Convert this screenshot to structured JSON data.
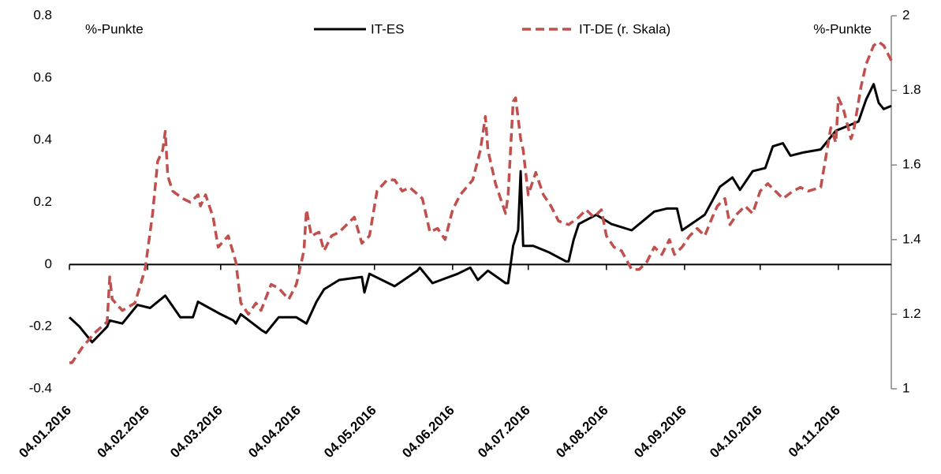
{
  "chart_data": {
    "type": "line",
    "annotations": [
      "%-Punkte",
      "%-Punkte"
    ],
    "xlim": [
      "04.01.2016",
      "25.11.2016"
    ],
    "xticks": [
      "04.01.2016",
      "04.02.2016",
      "04.03.2016",
      "04.04.2016",
      "04.05.2016",
      "04.06.2016",
      "04.07.2016",
      "04.08.2016",
      "04.09.2016",
      "04.10.2016",
      "04.11.2016"
    ],
    "ylim": [
      -0.4,
      0.8
    ],
    "yticks": [
      -0.4,
      -0.2,
      0,
      0.2,
      0.4,
      0.6,
      0.8
    ],
    "y2lim": [
      1,
      2
    ],
    "y2ticks": [
      1,
      1.2,
      1.4,
      1.6,
      1.8,
      2
    ],
    "series": [
      {
        "name": "IT-ES",
        "color": "#000000",
        "axis": "y",
        "line_style": "solid",
        "x": [
          "04.01.2016",
          "08.01.2016",
          "13.01.2016",
          "19.01.2016",
          "20.01.2016",
          "25.01.2016",
          "31.01.2016",
          "05.02.2016",
          "11.02.2016",
          "17.02.2016",
          "22.02.2016",
          "24.02.2016",
          "04.03.2016",
          "09.03.2016",
          "10.03.2016",
          "12.03.2016",
          "20.03.2016",
          "22.03.2016",
          "27.03.2016",
          "03.04.2016",
          "07.04.2016",
          "11.04.2016",
          "14.04.2016",
          "20.04.2016",
          "29.04.2016",
          "30.04.2016",
          "02.05.2016",
          "12.05.2016",
          "21.05.2016",
          "22.05.2016",
          "27.05.2016",
          "06.06.2016",
          "11.06.2016",
          "14.06.2016",
          "18.06.2016",
          "25.06.2016",
          "26.06.2016",
          "28.06.2016",
          "30.06.2016",
          "01.07.2016",
          "02.07.2016",
          "06.07.2016",
          "12.07.2016",
          "19.07.2016",
          "20.07.2016",
          "22.07.2016",
          "24.07.2016",
          "31.07.2016",
          "06.08.2016",
          "14.08.2016",
          "23.08.2016",
          "28.08.2016",
          "01.09.2016",
          "03.09.2016",
          "12.09.2016",
          "18.09.2016",
          "23.09.2016",
          "26.09.2016",
          "01.10.2016",
          "06.10.2016",
          "09.10.2016",
          "13.10.2016",
          "16.10.2016",
          "21.10.2016",
          "28.10.2016",
          "03.11.2016",
          "09.11.2016",
          "12.11.2016",
          "15.11.2016",
          "18.11.2016",
          "20.11.2016",
          "22.11.2016",
          "25.11.2016"
        ],
        "values": [
          -0.17,
          -0.2,
          -0.25,
          -0.2,
          -0.18,
          -0.19,
          -0.13,
          -0.14,
          -0.1,
          -0.17,
          -0.17,
          -0.12,
          -0.16,
          -0.18,
          -0.19,
          -0.16,
          -0.21,
          -0.22,
          -0.17,
          -0.17,
          -0.19,
          -0.12,
          -0.08,
          -0.05,
          -0.04,
          -0.09,
          -0.03,
          -0.07,
          -0.02,
          -0.01,
          -0.06,
          -0.03,
          -0.01,
          -0.05,
          -0.02,
          -0.06,
          -0.06,
          0.06,
          0.11,
          0.3,
          0.06,
          0.06,
          0.04,
          0.01,
          0.01,
          0.08,
          0.13,
          0.16,
          0.13,
          0.11,
          0.17,
          0.18,
          0.18,
          0.11,
          0.16,
          0.25,
          0.28,
          0.24,
          0.3,
          0.31,
          0.38,
          0.39,
          0.35,
          0.36,
          0.37,
          0.43,
          0.45,
          0.46,
          0.53,
          0.58,
          0.52,
          0.5,
          0.51
        ]
      },
      {
        "name": "IT-DE (r. Skala)",
        "color": "#c0504d",
        "axis": "y2",
        "line_style": "dashed",
        "x": [
          "04.01.2016",
          "05.01.2016",
          "09.01.2016",
          "14.01.2016",
          "19.01.2016",
          "20.01.2016",
          "21.01.2016",
          "25.01.2016",
          "30.01.2016",
          "03.02.2016",
          "06.02.2016",
          "08.02.2016",
          "10.02.2016",
          "11.02.2016",
          "12.02.2016",
          "14.02.2016",
          "18.02.2016",
          "21.02.2016",
          "24.02.2016",
          "25.02.2016",
          "27.02.2016",
          "01.03.2016",
          "03.03.2016",
          "07.03.2016",
          "10.03.2016",
          "12.03.2016",
          "15.03.2016",
          "18.03.2016",
          "20.03.2016",
          "24.03.2016",
          "27.03.2016",
          "31.03.2016",
          "03.04.2016",
          "06.04.2016",
          "07.04.2016",
          "09.04.2016",
          "12.04.2016",
          "14.04.2016",
          "17.04.2016",
          "20.04.2016",
          "23.04.2016",
          "26.04.2016",
          "29.04.2016",
          "02.05.2016",
          "05.05.2016",
          "09.05.2016",
          "12.05.2016",
          "15.05.2016",
          "18.05.2016",
          "23.05.2016",
          "26.05.2016",
          "29.05.2016",
          "01.06.2016",
          "04.06.2016",
          "07.06.2016",
          "12.06.2016",
          "15.06.2016",
          "17.06.2016",
          "18.06.2016",
          "21.06.2016",
          "25.06.2016",
          "26.06.2016",
          "28.06.2016",
          "29.06.2016",
          "01.07.2016",
          "02.07.2016",
          "04.07.2016",
          "07.07.2016",
          "10.07.2016",
          "13.07.2016",
          "16.07.2016",
          "20.07.2016",
          "24.07.2016",
          "27.07.2016",
          "30.07.2016",
          "02.08.2016",
          "04.08.2016",
          "07.08.2016",
          "10.08.2016",
          "14.08.2016",
          "17.08.2016",
          "20.08.2016",
          "23.08.2016",
          "26.08.2016",
          "29.08.2016",
          "31.08.2016",
          "03.09.2016",
          "06.09.2016",
          "09.09.2016",
          "12.09.2016",
          "15.09.2016",
          "17.09.2016",
          "20.09.2016",
          "22.09.2016",
          "25.09.2016",
          "28.09.2016",
          "01.10.2016",
          "04.10.2016",
          "07.10.2016",
          "10.10.2016",
          "13.10.2016",
          "17.10.2016",
          "20.10.2016",
          "23.10.2016",
          "28.10.2016",
          "30.10.2016",
          "01.11.2016",
          "03.11.2016",
          "04.11.2016",
          "06.11.2016",
          "09.11.2016",
          "10.11.2016",
          "13.11.2016",
          "15.11.2016",
          "18.11.2016",
          "20.11.2016",
          "22.11.2016",
          "25.11.2016"
        ],
        "values": [
          1.07,
          1.07,
          1.11,
          1.15,
          1.18,
          1.3,
          1.24,
          1.21,
          1.23,
          1.32,
          1.47,
          1.61,
          1.64,
          1.69,
          1.57,
          1.53,
          1.51,
          1.5,
          1.52,
          1.49,
          1.52,
          1.46,
          1.38,
          1.41,
          1.34,
          1.23,
          1.2,
          1.23,
          1.21,
          1.28,
          1.27,
          1.24,
          1.28,
          1.37,
          1.48,
          1.41,
          1.42,
          1.37,
          1.41,
          1.42,
          1.44,
          1.46,
          1.39,
          1.41,
          1.53,
          1.56,
          1.56,
          1.53,
          1.54,
          1.51,
          1.42,
          1.43,
          1.4,
          1.48,
          1.52,
          1.56,
          1.64,
          1.73,
          1.64,
          1.55,
          1.47,
          1.52,
          1.77,
          1.78,
          1.67,
          1.64,
          1.52,
          1.58,
          1.52,
          1.49,
          1.45,
          1.44,
          1.46,
          1.48,
          1.46,
          1.48,
          1.41,
          1.38,
          1.37,
          1.32,
          1.32,
          1.34,
          1.38,
          1.36,
          1.4,
          1.36,
          1.38,
          1.41,
          1.43,
          1.41,
          1.46,
          1.49,
          1.51,
          1.44,
          1.47,
          1.49,
          1.47,
          1.53,
          1.55,
          1.53,
          1.51,
          1.53,
          1.54,
          1.53,
          1.54,
          1.62,
          1.7,
          1.66,
          1.78,
          1.75,
          1.67,
          1.69,
          1.81,
          1.87,
          1.92,
          1.93,
          1.92,
          1.88
        ]
      }
    ]
  }
}
